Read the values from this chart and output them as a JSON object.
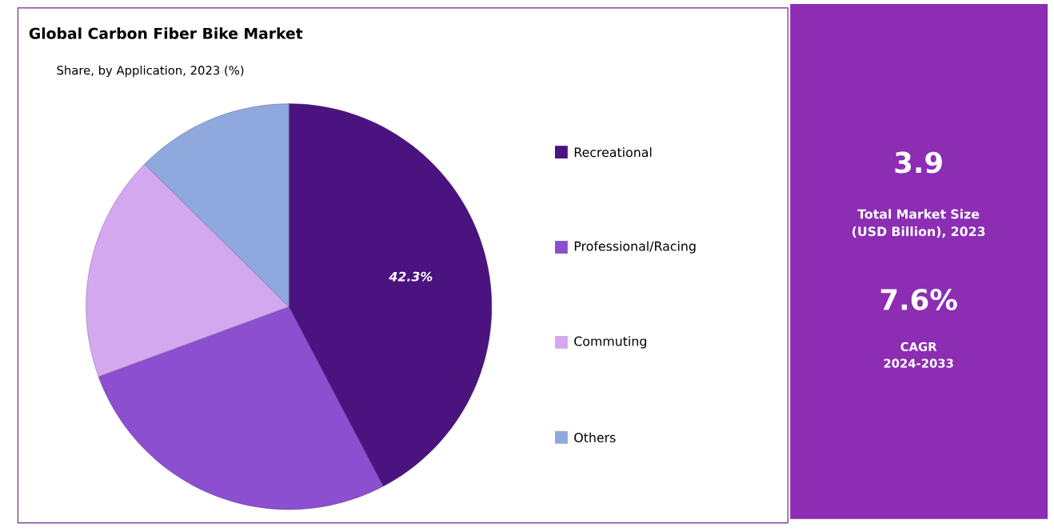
{
  "chart_data": {
    "type": "pie",
    "title": "Global Carbon Fiber Bike Market",
    "subtitle": "Share, by Application, 2023 (%)",
    "categories": [
      "Recreational",
      "Professional/Racing",
      "Commuting",
      "Others"
    ],
    "values": [
      42.3,
      27.1,
      18.0,
      12.6
    ],
    "colors": [
      "#4b137f",
      "#8b4fd0",
      "#d3a8ee",
      "#8fa8dd"
    ],
    "value_labels": [
      "42.3%",
      null,
      null,
      null
    ],
    "legend": "right",
    "annotations": [
      "3.9",
      "Total Market Size (USD Billion), 2023",
      "7.6%",
      "CAGR 2024-2033"
    ]
  }
}
